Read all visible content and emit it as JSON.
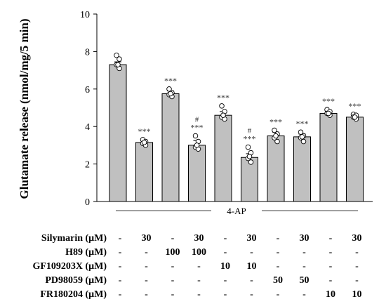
{
  "chart_data": {
    "type": "bar",
    "ylabel": "Glutamate release (nmol/mg/5 min)",
    "ylim": [
      0,
      10
    ],
    "yticks": [
      "0",
      "2",
      "4",
      "6",
      "8",
      "10"
    ],
    "group_label": "4-AP",
    "values": [
      7.3,
      3.15,
      5.75,
      3.0,
      4.6,
      2.35,
      3.5,
      3.45,
      4.7,
      4.5
    ],
    "errors": [
      0.15,
      0.1,
      0.15,
      0.25,
      0.2,
      0.2,
      0.2,
      0.15,
      0.1,
      0.1
    ],
    "points": [
      [
        7.8,
        7.6,
        7.3,
        7.1,
        7.3
      ],
      [
        3.3,
        3.2,
        3.1,
        3.0,
        3.15
      ],
      [
        6.0,
        5.8,
        5.7,
        5.6,
        5.75
      ],
      [
        3.5,
        3.2,
        2.9,
        2.8,
        3.0
      ],
      [
        5.1,
        4.8,
        4.5,
        4.4,
        4.6
      ],
      [
        2.9,
        2.6,
        2.3,
        2.1,
        2.4
      ],
      [
        3.8,
        3.6,
        3.4,
        3.2,
        3.5
      ],
      [
        3.7,
        3.5,
        3.4,
        3.2,
        3.45
      ],
      [
        4.9,
        4.8,
        4.7,
        4.6,
        4.7
      ],
      [
        4.65,
        4.6,
        4.5,
        4.4,
        4.5
      ]
    ],
    "annotations": [
      [],
      [
        "***"
      ],
      [
        "***"
      ],
      [
        "#",
        "***"
      ],
      [
        "***"
      ],
      [
        "#",
        "***"
      ],
      [
        "***"
      ],
      [
        "***"
      ],
      [
        "***"
      ],
      [
        "***"
      ]
    ],
    "treatments": [
      {
        "label": "Silymarin",
        "unit": "(μM)",
        "values": [
          "-",
          "30",
          "-",
          "30",
          "-",
          "30",
          "-",
          "30",
          "-",
          "30"
        ]
      },
      {
        "label": "H89",
        "unit": "(μM)",
        "values": [
          "-",
          "-",
          "100",
          "100",
          "-",
          "-",
          "-",
          "-",
          "-",
          "-"
        ]
      },
      {
        "label": "GF109203X",
        "unit": "(μM)",
        "values": [
          "-",
          "-",
          "-",
          "-",
          "10",
          "10",
          "-",
          "-",
          "-",
          "-"
        ]
      },
      {
        "label": "PD98059",
        "unit": "(μM)",
        "values": [
          "-",
          "-",
          "-",
          "-",
          "-",
          "-",
          "50",
          "50",
          "-",
          "-"
        ]
      },
      {
        "label": "FR180204",
        "unit": "(μM)",
        "values": [
          "-",
          "-",
          "-",
          "-",
          "-",
          "-",
          "-",
          "-",
          "10",
          "10"
        ]
      }
    ],
    "bar_color": "#c0c0c0"
  }
}
